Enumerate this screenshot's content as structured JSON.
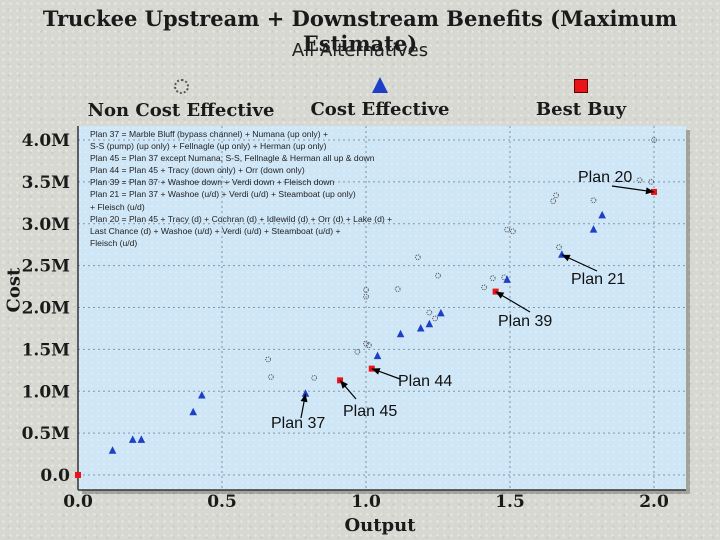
{
  "title": "Truckee Upstream + Downstream Benefits (Maximum Estimate)",
  "subtitle": "All Alternatives",
  "legend": [
    {
      "icon": "circle",
      "label": "Non Cost Effective"
    },
    {
      "icon": "triangle",
      "label": "Cost Effective"
    },
    {
      "icon": "square",
      "label": "Best Buy"
    }
  ],
  "notes": [
    "Plan 37 = Marble Bluff (bypass channel) + Numana (up only) +",
    "S-S (pump) (up only) + Fellnagle (up only) + Herman (up only)",
    "Plan 45 = Plan 37 except Numana, S-S, Fellnagle & Herman all up & down",
    "Plan 44 = Plan 45 + Tracy (down only) + Orr (down only)",
    "Plan 39 = Plan 37 + Washoe down + Verdi down + Fleisch down",
    "Plan 21 = Plan 37 + Washoe (u/d) + Verdi (u/d) + Steamboat (up only)",
    "+ Fleisch (u/d)",
    "Plan 20 = Plan 45 + Tracy (d) + Cochran (d) + Idlewild (d) + Orr (d) + Lake (d) +",
    "Last Chance (d) + Washoe (u/d) + Verdi (u/d) + Steamboat (u/d) +",
    "Fleisch (u/d)"
  ],
  "colors": {
    "plot_bg": "#cfe6f6",
    "cost_effective": "#1e3fc8",
    "best_buy": "#e8141a",
    "non_cost": "#555555"
  },
  "chart_data": {
    "type": "scatter",
    "xlabel": "Output",
    "ylabel": "Cost",
    "xlim": [
      0,
      2.1
    ],
    "ylim": [
      0,
      4.2
    ],
    "x_ticks": [
      {
        "v": 0,
        "label": "0.0"
      },
      {
        "v": 0.5,
        "label": "0.5"
      },
      {
        "v": 1.0,
        "label": "1.0"
      },
      {
        "v": 1.5,
        "label": "1.5"
      },
      {
        "v": 2.0,
        "label": "2.0"
      }
    ],
    "y_ticks": [
      {
        "v": 0,
        "label": "0.0"
      },
      {
        "v": 0.5,
        "label": "0.5M"
      },
      {
        "v": 1.0,
        "label": "1.0M"
      },
      {
        "v": 1.5,
        "label": "1.5M"
      },
      {
        "v": 2.0,
        "label": "2.0M"
      },
      {
        "v": 2.5,
        "label": "2.5M"
      },
      {
        "v": 3.0,
        "label": "3.0M"
      },
      {
        "v": 3.5,
        "label": "3.5M"
      },
      {
        "v": 4.0,
        "label": "4.0M"
      }
    ],
    "series": [
      {
        "name": "Non Cost Effective",
        "marker": "circle",
        "points": [
          [
            0.66,
            1.38
          ],
          [
            0.67,
            1.17
          ],
          [
            0.82,
            1.16
          ],
          [
            0.97,
            1.47
          ],
          [
            1.0,
            1.57
          ],
          [
            1.01,
            1.55
          ],
          [
            1.0,
            2.13
          ],
          [
            1.0,
            2.21
          ],
          [
            1.11,
            2.22
          ],
          [
            1.18,
            2.6
          ],
          [
            1.22,
            1.94
          ],
          [
            1.24,
            1.87
          ],
          [
            1.25,
            2.38
          ],
          [
            1.41,
            2.24
          ],
          [
            1.44,
            2.35
          ],
          [
            1.48,
            2.36
          ],
          [
            1.49,
            2.93
          ],
          [
            1.51,
            2.91
          ],
          [
            1.65,
            3.27
          ],
          [
            1.66,
            3.34
          ],
          [
            1.67,
            2.72
          ],
          [
            1.79,
            3.28
          ],
          [
            2.0,
            4.0
          ],
          [
            1.95,
            3.52
          ],
          [
            1.99,
            3.5
          ]
        ]
      },
      {
        "name": "Cost Effective",
        "marker": "triangle",
        "points": [
          [
            0.12,
            0.29
          ],
          [
            0.19,
            0.42
          ],
          [
            0.22,
            0.42
          ],
          [
            0.4,
            0.75
          ],
          [
            0.43,
            0.95
          ],
          [
            0.79,
            0.97
          ],
          [
            1.04,
            1.42
          ],
          [
            1.12,
            1.68
          ],
          [
            1.19,
            1.75
          ],
          [
            1.22,
            1.8
          ],
          [
            1.26,
            1.93
          ],
          [
            1.49,
            2.33
          ],
          [
            1.68,
            2.63
          ],
          [
            1.79,
            2.93
          ],
          [
            1.82,
            3.1
          ]
        ]
      },
      {
        "name": "Best Buy",
        "marker": "square",
        "points": [
          [
            0.0,
            0.0
          ],
          [
            0.91,
            1.13
          ],
          [
            1.02,
            1.27
          ],
          [
            1.45,
            2.19
          ],
          [
            2.0,
            3.38
          ]
        ]
      }
    ],
    "annotations": [
      {
        "label": "Plan 20",
        "point": [
          2.0,
          3.38
        ]
      },
      {
        "label": "Plan 21",
        "point": [
          1.68,
          2.63
        ]
      },
      {
        "label": "Plan 39",
        "point": [
          1.45,
          2.19
        ]
      },
      {
        "label": "Plan 44",
        "point": [
          1.02,
          1.27
        ]
      },
      {
        "label": "Plan 45",
        "point": [
          0.91,
          1.13
        ]
      },
      {
        "label": "Plan 37",
        "point": [
          0.79,
          0.97
        ]
      }
    ]
  }
}
